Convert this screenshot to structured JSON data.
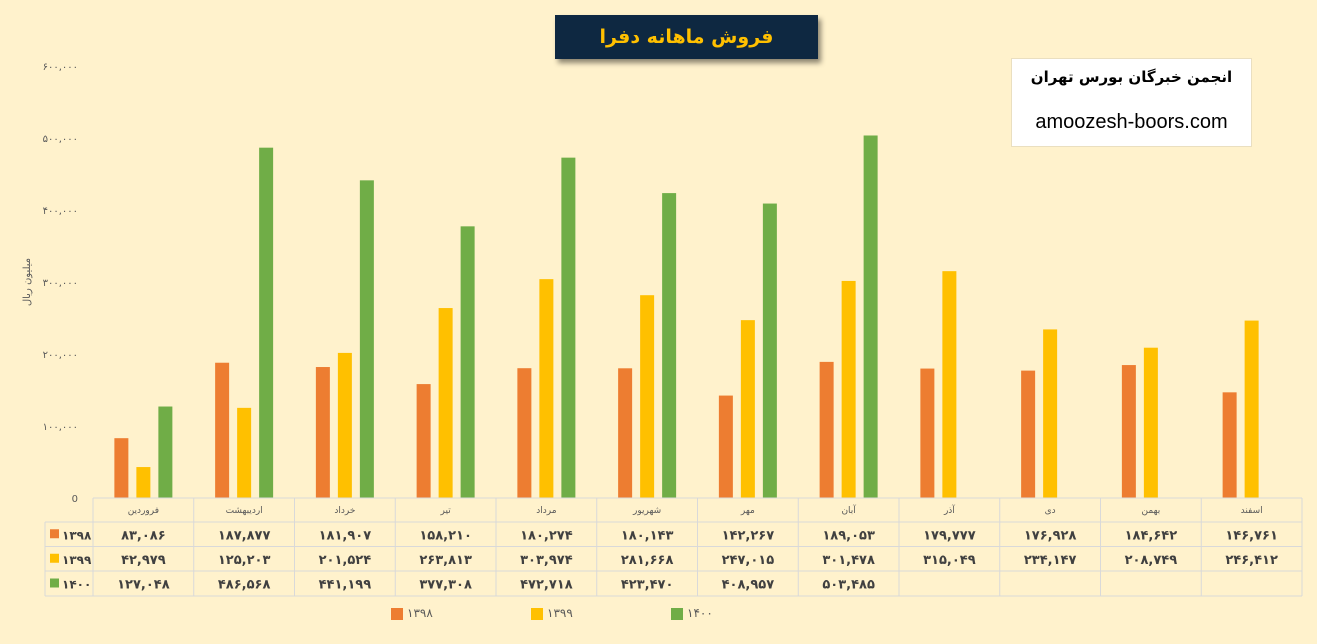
{
  "title": "فروش ماهانه دفرا",
  "brand": {
    "name": "انجمن خبرگان بورس تهران",
    "url": "amoozesh-boors.com"
  },
  "chart_data": {
    "type": "bar",
    "ylabel": "میلیون ریال",
    "ylim": [
      0,
      600000
    ],
    "yticks": [
      "0",
      "۱۰۰,۰۰۰",
      "۲۰۰,۰۰۰",
      "۳۰۰,۰۰۰",
      "۴۰۰,۰۰۰",
      "۵۰۰,۰۰۰",
      "۶۰۰,۰۰۰"
    ],
    "categories": [
      "فروردین",
      "اردیبهشت",
      "خرداد",
      "تیر",
      "مرداد",
      "شهریور",
      "مهر",
      "آبان",
      "آذر",
      "دی",
      "بهمن",
      "اسفند"
    ],
    "legend_position": "bottom",
    "series": [
      {
        "name": "۱۳۹۸",
        "color": "#ed7d31",
        "values": [
          83086,
          187877,
          181907,
          158210,
          180274,
          180143,
          142267,
          189053,
          179777,
          176928,
          184642,
          146761
        ],
        "labels": [
          "۸۳,۰۸۶",
          "۱۸۷,۸۷۷",
          "۱۸۱,۹۰۷",
          "۱۵۸,۲۱۰",
          "۱۸۰,۲۷۴",
          "۱۸۰,۱۴۳",
          "۱۴۲,۲۶۷",
          "۱۸۹,۰۵۳",
          "۱۷۹,۷۷۷",
          "۱۷۶,۹۲۸",
          "۱۸۴,۶۴۲",
          "۱۴۶,۷۶۱"
        ]
      },
      {
        "name": "۱۳۹۹",
        "color": "#ffc000",
        "values": [
          42979,
          125203,
          201524,
          263813,
          303974,
          281668,
          247015,
          301478,
          315049,
          234147,
          208749,
          246412
        ],
        "labels": [
          "۴۲,۹۷۹",
          "۱۲۵,۲۰۳",
          "۲۰۱,۵۲۴",
          "۲۶۳,۸۱۳",
          "۳۰۳,۹۷۴",
          "۲۸۱,۶۶۸",
          "۲۴۷,۰۱۵",
          "۳۰۱,۴۷۸",
          "۳۱۵,۰۴۹",
          "۲۳۴,۱۴۷",
          "۲۰۸,۷۴۹",
          "۲۴۶,۴۱۲"
        ]
      },
      {
        "name": "۱۴۰۰",
        "color": "#70ad47",
        "values": [
          127048,
          486568,
          441199,
          377308,
          472718,
          423470,
          408957,
          503485,
          null,
          null,
          null,
          null
        ],
        "labels": [
          "۱۲۷,۰۴۸",
          "۴۸۶,۵۶۸",
          "۴۴۱,۱۹۹",
          "۳۷۷,۳۰۸",
          "۴۷۲,۷۱۸",
          "۴۲۳,۴۷۰",
          "۴۰۸,۹۵۷",
          "۵۰۳,۴۸۵",
          "",
          "",
          "",
          ""
        ]
      }
    ]
  }
}
